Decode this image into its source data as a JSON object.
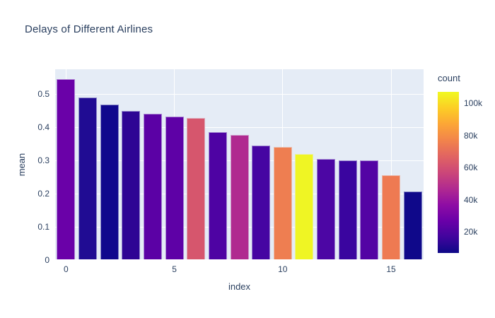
{
  "colors": {
    "paper_bg": "#ffffff",
    "plot_bg": "#e5ecf6",
    "grid": "#ffffff",
    "text": "#2a3f5f"
  },
  "chart_data": {
    "type": "bar",
    "title": "Delays of Different Airlines",
    "xlabel": "index",
    "ylabel": "mean",
    "categories": [
      0,
      1,
      2,
      3,
      4,
      5,
      6,
      7,
      8,
      9,
      10,
      11,
      12,
      13,
      14,
      15,
      16
    ],
    "values": [
      0.545,
      0.49,
      0.468,
      0.45,
      0.44,
      0.432,
      0.428,
      0.386,
      0.377,
      0.345,
      0.34,
      0.32,
      0.305,
      0.3,
      0.3,
      0.255,
      0.207
    ],
    "bar_colors": [
      "#6a01a8",
      "#200c93",
      "#10088d",
      "#2e0594",
      "#5b01a5",
      "#5e01a6",
      "#d6566d",
      "#4e03a3",
      "#b02a90",
      "#4605a2",
      "#ee7e51",
      "#eff524",
      "#4c06a4",
      "#3a059f",
      "#5303a4",
      "#ee7a52",
      "#0f088a"
    ],
    "counts_estimated": [
      27000,
      10000,
      8000,
      13000,
      23000,
      24000,
      61000,
      20000,
      47000,
      18000,
      75000,
      106000,
      19000,
      16000,
      21000,
      75000,
      7000
    ],
    "xlim": [
      -0.5,
      16.5
    ],
    "ylim": [
      0,
      0.575
    ],
    "grid": true,
    "xticks": [
      0,
      5,
      10,
      15
    ],
    "yticks": [
      0,
      0.1,
      0.2,
      0.3,
      0.4,
      0.5
    ],
    "ytick_labels": [
      "0",
      "0.1",
      "0.2",
      "0.3",
      "0.4",
      "0.5"
    ],
    "xtick_labels": [
      "0",
      "5",
      "10",
      "15"
    ],
    "colorbar": {
      "title": "count",
      "tick_values": [
        20000,
        40000,
        60000,
        80000,
        100000
      ],
      "tick_labels": [
        "20k",
        "40k",
        "60k",
        "80k",
        "100k"
      ],
      "range": [
        7000,
        107000
      ],
      "colormap": "plasma",
      "gradient_stops": [
        "#0d0887",
        "#41049d",
        "#6a00a8",
        "#8f0da4",
        "#b12a90",
        "#cc4778",
        "#e16462",
        "#f2844b",
        "#fca636",
        "#fcce25",
        "#f0f921"
      ]
    }
  }
}
